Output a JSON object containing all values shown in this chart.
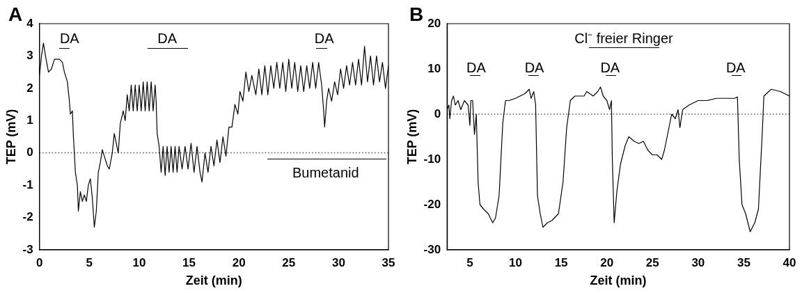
{
  "chart_data": [
    {
      "type": "line",
      "title": "A",
      "xlabel": "Zeit (min)",
      "ylabel": "TEP (mV)",
      "xlim": [
        0,
        35
      ],
      "xticks": [
        0,
        5,
        10,
        15,
        20,
        25,
        30,
        35
      ],
      "ylim": [
        -3,
        4
      ],
      "yticks": [
        -3,
        -2,
        -1,
        0,
        1,
        2,
        3,
        4
      ],
      "grid": false,
      "legend": false,
      "marker": "none",
      "line_style": "solid",
      "ref_lines": [
        {
          "axis": "y",
          "value": 0,
          "line_style": "dotted",
          "color": "#000000"
        }
      ],
      "annotations": [
        "DA",
        "DA",
        "DA",
        "Bumetanid"
      ],
      "series": [
        {
          "color": "#000000",
          "x": [
            0,
            0.2,
            0.4,
            0.6,
            0.9,
            1.2,
            1.5,
            2.0,
            2.3,
            2.5,
            2.8,
            3.0,
            3.1,
            3.3,
            3.4,
            3.5,
            3.6,
            3.8,
            3.9,
            4.1,
            4.3,
            4.5,
            4.7,
            4.9,
            5.1,
            5.3,
            5.5,
            5.7,
            5.9,
            6.1,
            6.3,
            6.5,
            6.8,
            7.0,
            7.3,
            7.5,
            7.7,
            7.9,
            8.1,
            8.4,
            8.6,
            8.8,
            9.0,
            9.2,
            9.4,
            9.6,
            9.8,
            10.0,
            10.2,
            10.4,
            10.6,
            10.8,
            11.0,
            11.2,
            11.4,
            11.6,
            11.7,
            11.8,
            12.0,
            12.2,
            12.4,
            12.6,
            12.8,
            13.0,
            13.2,
            13.4,
            13.6,
            13.8,
            14.0,
            14.3,
            14.6,
            14.9,
            15.2,
            15.5,
            15.8,
            16.1,
            16.3,
            16.6,
            16.9,
            17.2,
            17.5,
            17.8,
            18.1,
            18.4,
            18.7,
            19.0,
            19.3,
            19.6,
            19.9,
            20.1,
            20.4,
            20.7,
            21.0,
            21.3,
            21.7,
            22.0,
            22.3,
            22.6,
            22.9,
            23.2,
            23.5,
            23.8,
            24.1,
            24.4,
            24.7,
            25.0,
            25.3,
            25.6,
            25.9,
            26.2,
            26.5,
            26.8,
            27.1,
            27.4,
            27.7,
            28.0,
            28.3,
            28.5,
            28.6,
            28.8,
            29.0,
            29.3,
            29.6,
            29.9,
            30.2,
            30.5,
            30.8,
            31.1,
            31.4,
            31.7,
            32.0,
            32.3,
            32.6,
            32.9,
            33.2,
            33.5,
            33.8,
            34.1,
            34.4,
            34.7,
            35.0
          ],
          "values": [
            2.4,
            3.0,
            3.4,
            3.0,
            2.5,
            2.6,
            2.9,
            2.9,
            2.8,
            2.5,
            2.2,
            1.6,
            1.2,
            1.3,
            0.5,
            0.0,
            -0.6,
            -1.0,
            -1.8,
            -1.2,
            -1.5,
            -1.3,
            -1.5,
            -1.0,
            -0.8,
            -1.4,
            -2.3,
            -1.8,
            -0.6,
            -0.3,
            0.1,
            -0.1,
            -0.4,
            -0.5,
            0.0,
            0.6,
            0.3,
            0.0,
            0.9,
            1.3,
            1.0,
            1.8,
            1.3,
            2.1,
            1.3,
            2.1,
            1.3,
            2.1,
            1.3,
            2.2,
            1.3,
            2.2,
            1.3,
            2.2,
            1.3,
            2.1,
            1.6,
            0.6,
            0.2,
            -0.6,
            0.2,
            -0.7,
            0.2,
            -0.6,
            0.2,
            -0.6,
            0.2,
            -0.6,
            0.2,
            -0.5,
            0.2,
            -0.5,
            0.3,
            -0.6,
            0.2,
            -0.6,
            -0.9,
            0.0,
            -0.6,
            0.2,
            -0.4,
            0.4,
            -0.3,
            0.5,
            -0.1,
            0.8,
            0.8,
            1.5,
            1.2,
            1.9,
            1.6,
            2.5,
            1.9,
            2.4,
            1.8,
            2.6,
            1.8,
            2.7,
            1.8,
            2.7,
            2.0,
            2.8,
            2.0,
            2.8,
            1.9,
            2.9,
            2.0,
            2.8,
            1.9,
            2.7,
            1.9,
            2.7,
            2.0,
            2.8,
            2.0,
            2.8,
            2.1,
            1.3,
            0.8,
            1.6,
            2.0,
            1.6,
            2.2,
            1.8,
            2.6,
            2.0,
            2.7,
            2.1,
            2.8,
            2.1,
            2.9,
            2.1,
            3.3,
            2.2,
            3.0,
            2.1,
            3.0,
            2.2,
            2.8,
            2.0,
            2.7
          ]
        }
      ]
    },
    {
      "type": "line",
      "title": "B",
      "xlabel": "Zeit (min)",
      "ylabel": "TEP (mV)",
      "xlim": [
        2.5,
        40
      ],
      "xticks": [
        5,
        10,
        15,
        20,
        25,
        30,
        35,
        40
      ],
      "ylim": [
        -30,
        20
      ],
      "yticks": [
        -30,
        -20,
        -10,
        0,
        10,
        20
      ],
      "grid": false,
      "legend": false,
      "marker": "none",
      "line_style": "solid",
      "ref_lines": [
        {
          "axis": "y",
          "value": 0,
          "line_style": "dotted",
          "color": "#000000"
        }
      ],
      "annotations": [
        "Cl⁻ freier Ringer",
        "DA",
        "DA",
        "DA",
        "DA"
      ],
      "series": [
        {
          "color": "#000000",
          "x": [
            2.5,
            2.7,
            2.8,
            3.0,
            3.2,
            3.4,
            3.7,
            4.0,
            4.4,
            4.8,
            5.0,
            5.1,
            5.3,
            5.5,
            5.7,
            5.9,
            6.1,
            6.5,
            7.0,
            7.5,
            7.8,
            8.2,
            8.6,
            8.9,
            9.3,
            10,
            11,
            11.5,
            11.7,
            12,
            12.2,
            12.4,
            12.7,
            13,
            13.5,
            14,
            14.7,
            15.2,
            15.6,
            16,
            16.5,
            17.5,
            17.8,
            18.5,
            19.0,
            19.3,
            19.6,
            20,
            20.3,
            20.5,
            20.6,
            20.8,
            21.1,
            21.5,
            22.0,
            22.4,
            23.0,
            23.5,
            24,
            24.5,
            25,
            25.5,
            26,
            26.3,
            26.8,
            27.1,
            27.5,
            27.8,
            28,
            28.3,
            29,
            30,
            31,
            32,
            33,
            34,
            34.3,
            34.5,
            34.8,
            35.2,
            35.7,
            36.2,
            36.6,
            37,
            37.2,
            38,
            39,
            40
          ],
          "values": [
            1,
            2,
            -1,
            3,
            4,
            2,
            3,
            1,
            3,
            2,
            -2.5,
            3,
            3,
            -4.5,
            0,
            -15,
            -20,
            -21,
            -22,
            -24,
            -23,
            -18,
            -2,
            3,
            3,
            3.5,
            4.5,
            5.5,
            3.5,
            5,
            2,
            -18,
            -22,
            -25,
            -24,
            -23.5,
            -22,
            -15,
            -3,
            3,
            4,
            4,
            5,
            4,
            5,
            6,
            4,
            3,
            1,
            3,
            -10,
            -24,
            -17,
            -11,
            -7,
            -5,
            -6,
            -6.5,
            -6,
            -8,
            -9,
            -9,
            -10,
            -8,
            -3,
            0,
            -1,
            1,
            -3,
            1,
            2,
            3,
            3,
            3.5,
            3.5,
            3.5,
            3.8,
            -10,
            -20,
            -22,
            -26,
            -24,
            -21,
            -5,
            4,
            5.5,
            5,
            4
          ]
        }
      ]
    }
  ]
}
